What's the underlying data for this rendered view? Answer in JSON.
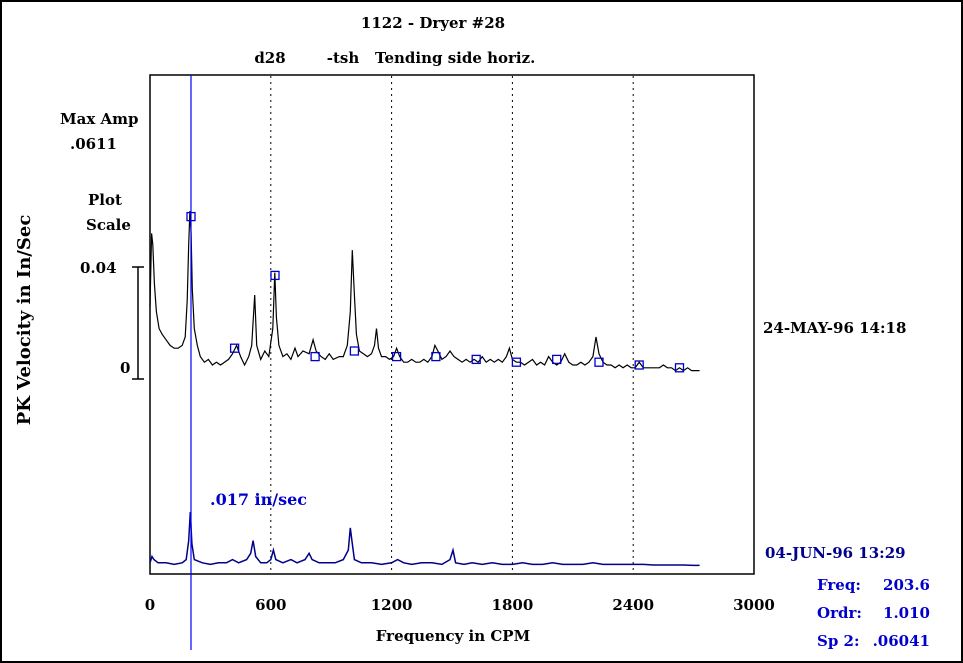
{
  "chart_data": {
    "type": "line",
    "title": "1122 - Dryer #28",
    "subtitle_id": "d28",
    "subtitle_code": "-tsh",
    "subtitle_text": "Tending side horiz.",
    "xlabel": "Frequency in CPM",
    "ylabel": "PK Velocity in In/Sec",
    "xlim": [
      0,
      3000
    ],
    "x_ticks": [
      0,
      600,
      1200,
      1800,
      2400,
      3000
    ],
    "x_tick_labels": [
      "0",
      "600",
      "1200",
      "1800",
      "2400",
      "3000"
    ],
    "gridlines_x": [
      600,
      1200,
      1800,
      2400
    ],
    "max_amp_label": "Max Amp",
    "max_amp_value": ".0611",
    "plot_scale_label_1": "Plot",
    "plot_scale_label_2": "Scale",
    "y_tick_labels": [
      "0.04",
      "0"
    ],
    "cursor_x": 203.6,
    "cursor_label": ".017 in/sec",
    "series": [
      {
        "name": "24-MAY-96  14:18",
        "color": "#000000",
        "marker_color": "#0000cc",
        "points": [
          [
            0,
            0.026
          ],
          [
            8,
            0.052
          ],
          [
            14,
            0.048
          ],
          [
            22,
            0.034
          ],
          [
            32,
            0.024
          ],
          [
            45,
            0.018
          ],
          [
            60,
            0.016
          ],
          [
            80,
            0.014
          ],
          [
            100,
            0.012
          ],
          [
            120,
            0.011
          ],
          [
            140,
            0.011
          ],
          [
            160,
            0.012
          ],
          [
            175,
            0.015
          ],
          [
            185,
            0.028
          ],
          [
            192,
            0.048
          ],
          [
            198,
            0.06
          ],
          [
            204,
            0.052
          ],
          [
            210,
            0.032
          ],
          [
            220,
            0.018
          ],
          [
            235,
            0.012
          ],
          [
            250,
            0.008
          ],
          [
            270,
            0.006
          ],
          [
            290,
            0.007
          ],
          [
            310,
            0.005
          ],
          [
            330,
            0.006
          ],
          [
            350,
            0.005
          ],
          [
            370,
            0.006
          ],
          [
            390,
            0.007
          ],
          [
            410,
            0.009
          ],
          [
            430,
            0.012
          ],
          [
            450,
            0.008
          ],
          [
            470,
            0.005
          ],
          [
            490,
            0.008
          ],
          [
            505,
            0.012
          ],
          [
            520,
            0.03
          ],
          [
            530,
            0.012
          ],
          [
            550,
            0.007
          ],
          [
            570,
            0.01
          ],
          [
            590,
            0.008
          ],
          [
            610,
            0.018
          ],
          [
            620,
            0.038
          ],
          [
            628,
            0.022
          ],
          [
            640,
            0.012
          ],
          [
            660,
            0.008
          ],
          [
            680,
            0.009
          ],
          [
            700,
            0.007
          ],
          [
            720,
            0.011
          ],
          [
            735,
            0.008
          ],
          [
            760,
            0.01
          ],
          [
            790,
            0.009
          ],
          [
            810,
            0.014
          ],
          [
            825,
            0.01
          ],
          [
            850,
            0.008
          ],
          [
            870,
            0.007
          ],
          [
            890,
            0.009
          ],
          [
            910,
            0.007
          ],
          [
            940,
            0.008
          ],
          [
            960,
            0.008
          ],
          [
            980,
            0.012
          ],
          [
            995,
            0.024
          ],
          [
            1005,
            0.046
          ],
          [
            1015,
            0.03
          ],
          [
            1025,
            0.016
          ],
          [
            1040,
            0.01
          ],
          [
            1060,
            0.009
          ],
          [
            1080,
            0.008
          ],
          [
            1100,
            0.009
          ],
          [
            1115,
            0.012
          ],
          [
            1125,
            0.018
          ],
          [
            1135,
            0.011
          ],
          [
            1150,
            0.008
          ],
          [
            1170,
            0.008
          ],
          [
            1190,
            0.007
          ],
          [
            1210,
            0.008
          ],
          [
            1225,
            0.011
          ],
          [
            1240,
            0.008
          ],
          [
            1260,
            0.006
          ],
          [
            1280,
            0.006
          ],
          [
            1300,
            0.007
          ],
          [
            1320,
            0.006
          ],
          [
            1340,
            0.006
          ],
          [
            1360,
            0.007
          ],
          [
            1380,
            0.006
          ],
          [
            1400,
            0.008
          ],
          [
            1415,
            0.012
          ],
          [
            1430,
            0.01
          ],
          [
            1450,
            0.007
          ],
          [
            1470,
            0.008
          ],
          [
            1490,
            0.01
          ],
          [
            1510,
            0.008
          ],
          [
            1530,
            0.007
          ],
          [
            1550,
            0.006
          ],
          [
            1570,
            0.007
          ],
          [
            1590,
            0.006
          ],
          [
            1610,
            0.007
          ],
          [
            1630,
            0.006
          ],
          [
            1650,
            0.008
          ],
          [
            1670,
            0.006
          ],
          [
            1690,
            0.007
          ],
          [
            1710,
            0.006
          ],
          [
            1730,
            0.007
          ],
          [
            1750,
            0.006
          ],
          [
            1770,
            0.008
          ],
          [
            1785,
            0.011
          ],
          [
            1800,
            0.007
          ],
          [
            1820,
            0.006
          ],
          [
            1840,
            0.006
          ],
          [
            1860,
            0.005
          ],
          [
            1880,
            0.006
          ],
          [
            1900,
            0.007
          ],
          [
            1920,
            0.005
          ],
          [
            1940,
            0.006
          ],
          [
            1960,
            0.005
          ],
          [
            1980,
            0.008
          ],
          [
            2000,
            0.006
          ],
          [
            2020,
            0.005
          ],
          [
            2040,
            0.006
          ],
          [
            2060,
            0.009
          ],
          [
            2080,
            0.006
          ],
          [
            2100,
            0.005
          ],
          [
            2120,
            0.005
          ],
          [
            2140,
            0.006
          ],
          [
            2160,
            0.005
          ],
          [
            2180,
            0.006
          ],
          [
            2200,
            0.008
          ],
          [
            2215,
            0.015
          ],
          [
            2230,
            0.009
          ],
          [
            2250,
            0.006
          ],
          [
            2270,
            0.005
          ],
          [
            2290,
            0.005
          ],
          [
            2310,
            0.004
          ],
          [
            2330,
            0.005
          ],
          [
            2350,
            0.004
          ],
          [
            2370,
            0.005
          ],
          [
            2390,
            0.004
          ],
          [
            2410,
            0.004
          ],
          [
            2430,
            0.006
          ],
          [
            2450,
            0.004
          ],
          [
            2470,
            0.004
          ],
          [
            2490,
            0.004
          ],
          [
            2510,
            0.004
          ],
          [
            2530,
            0.004
          ],
          [
            2550,
            0.005
          ],
          [
            2570,
            0.004
          ],
          [
            2590,
            0.004
          ],
          [
            2610,
            0.003
          ],
          [
            2630,
            0.004
          ],
          [
            2650,
            0.003
          ],
          [
            2670,
            0.004
          ],
          [
            2690,
            0.003
          ],
          [
            2710,
            0.003
          ],
          [
            2730,
            0.003
          ]
        ],
        "markers": [
          [
            203.6,
            0.058
          ],
          [
            420,
            0.011
          ],
          [
            621,
            0.037
          ],
          [
            820,
            0.008
          ],
          [
            1015,
            0.01
          ],
          [
            1225,
            0.008
          ],
          [
            1420,
            0.008
          ],
          [
            1620,
            0.007
          ],
          [
            1820,
            0.006
          ],
          [
            2020,
            0.007
          ],
          [
            2230,
            0.006
          ],
          [
            2430,
            0.005
          ],
          [
            2630,
            0.004
          ]
        ]
      },
      {
        "name": "04-JUN-96  13:29",
        "color": "#00008b",
        "points": [
          [
            0,
            0.001
          ],
          [
            10,
            0.003
          ],
          [
            20,
            0.002
          ],
          [
            40,
            0.001
          ],
          [
            80,
            0.001
          ],
          [
            120,
            0.0005
          ],
          [
            160,
            0.001
          ],
          [
            180,
            0.002
          ],
          [
            192,
            0.008
          ],
          [
            200,
            0.017
          ],
          [
            208,
            0.007
          ],
          [
            220,
            0.002
          ],
          [
            260,
            0.001
          ],
          [
            300,
            0.0005
          ],
          [
            340,
            0.001
          ],
          [
            380,
            0.001
          ],
          [
            410,
            0.002
          ],
          [
            440,
            0.001
          ],
          [
            480,
            0.002
          ],
          [
            500,
            0.004
          ],
          [
            512,
            0.008
          ],
          [
            525,
            0.003
          ],
          [
            550,
            0.001
          ],
          [
            580,
            0.001
          ],
          [
            600,
            0.002
          ],
          [
            613,
            0.005
          ],
          [
            625,
            0.002
          ],
          [
            660,
            0.001
          ],
          [
            700,
            0.002
          ],
          [
            730,
            0.001
          ],
          [
            770,
            0.002
          ],
          [
            790,
            0.004
          ],
          [
            805,
            0.002
          ],
          [
            840,
            0.001
          ],
          [
            880,
            0.001
          ],
          [
            920,
            0.001
          ],
          [
            960,
            0.002
          ],
          [
            985,
            0.005
          ],
          [
            995,
            0.012
          ],
          [
            1003,
            0.008
          ],
          [
            1015,
            0.002
          ],
          [
            1050,
            0.001
          ],
          [
            1100,
            0.001
          ],
          [
            1150,
            0.0005
          ],
          [
            1200,
            0.001
          ],
          [
            1230,
            0.002
          ],
          [
            1260,
            0.001
          ],
          [
            1300,
            0.0005
          ],
          [
            1350,
            0.001
          ],
          [
            1400,
            0.001
          ],
          [
            1450,
            0.0005
          ],
          [
            1490,
            0.002
          ],
          [
            1505,
            0.005
          ],
          [
            1518,
            0.001
          ],
          [
            1560,
            0.0005
          ],
          [
            1600,
            0.001
          ],
          [
            1650,
            0.0005
          ],
          [
            1700,
            0.001
          ],
          [
            1750,
            0.0005
          ],
          [
            1800,
            0.0005
          ],
          [
            1850,
            0.001
          ],
          [
            1900,
            0.0005
          ],
          [
            1950,
            0.0005
          ],
          [
            2000,
            0.001
          ],
          [
            2050,
            0.0005
          ],
          [
            2100,
            0.0005
          ],
          [
            2150,
            0.0005
          ],
          [
            2200,
            0.001
          ],
          [
            2250,
            0.0005
          ],
          [
            2300,
            0.0005
          ],
          [
            2350,
            0.0005
          ],
          [
            2400,
            0.0005
          ],
          [
            2450,
            0.0005
          ],
          [
            2500,
            0.0003
          ],
          [
            2550,
            0.0003
          ],
          [
            2600,
            0.0003
          ],
          [
            2650,
            0.0003
          ],
          [
            2700,
            0.0002
          ],
          [
            2730,
            0.0002
          ]
        ]
      }
    ]
  },
  "cursor_readout": {
    "freq_label": "Freq:",
    "freq_value": "203.6",
    "ordr_label": "Ordr:",
    "ordr_value": "1.010",
    "sp2_label": "Sp 2:",
    "sp2_value": ".06041"
  }
}
